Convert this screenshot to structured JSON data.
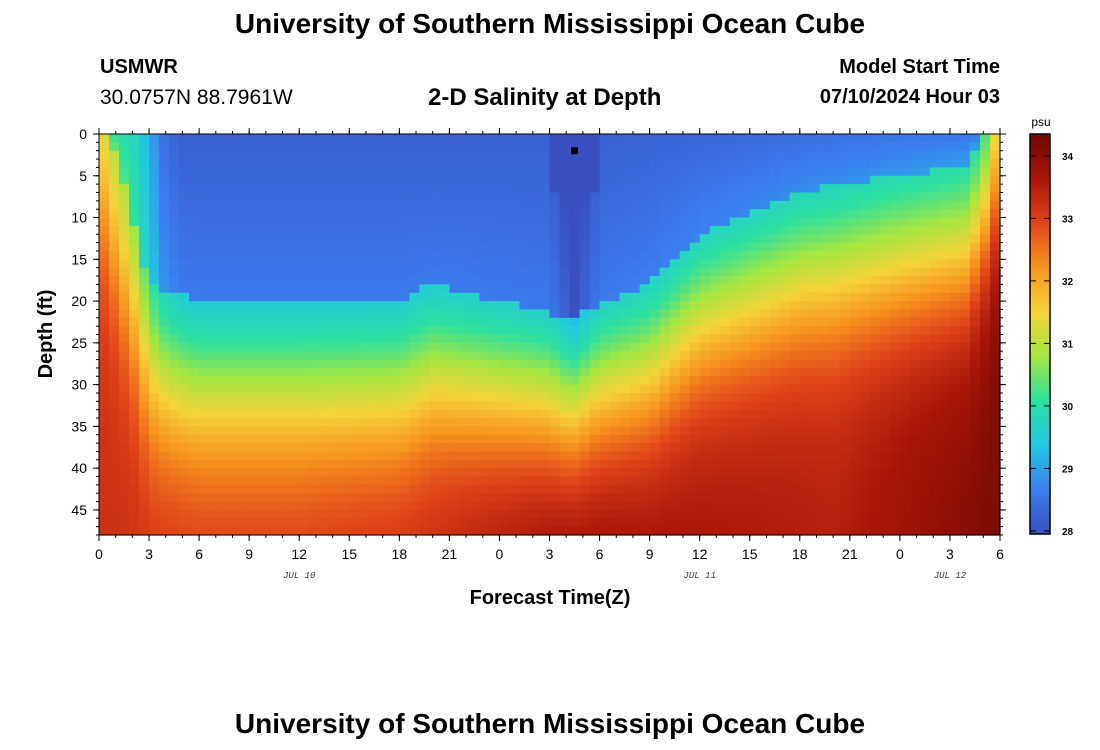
{
  "header": {
    "title": "University of Southern Mississippi Ocean Cube",
    "station": "USMWR",
    "coords": "30.0757N  88.7961W",
    "subtitle": "2-D Salinity at Depth",
    "model_start_label": "Model Start Time",
    "model_start_value": "07/10/2024 Hour 03"
  },
  "footer": {
    "title": "University of Southern Mississippi Ocean Cube"
  },
  "chart_data": {
    "type": "heatmap",
    "title": "2-D Salinity at Depth",
    "xlabel": "Forecast Time(Z)",
    "ylabel": "Depth (ft)",
    "x_ticks": [
      "0",
      "3",
      "6",
      "9",
      "12",
      "15",
      "18",
      "21",
      "0",
      "3",
      "6",
      "9",
      "12",
      "15",
      "18",
      "21",
      "0",
      "3",
      "6"
    ],
    "x_range_hours": [
      0,
      54
    ],
    "date_labels": [
      {
        "text": "JUL 10",
        "hour": 12
      },
      {
        "text": "JUL 11",
        "hour": 36
      },
      {
        "text": "JUL 12",
        "hour": 51
      }
    ],
    "y_ticks": [
      0,
      5,
      10,
      15,
      20,
      25,
      30,
      35,
      40,
      45
    ],
    "y_range": [
      0,
      48
    ],
    "colorbar": {
      "unit": "psu",
      "ticks": [
        28,
        29,
        30,
        31,
        32,
        33,
        34
      ],
      "range": [
        27.95,
        34.35
      ],
      "stops": [
        "#3a4fc0",
        "#3b7ef0",
        "#22c9e0",
        "#2de0a0",
        "#a6e640",
        "#f5d33a",
        "#f7941e",
        "#e0431a",
        "#a81408",
        "#6e0a04"
      ]
    },
    "marker": {
      "hour": 28.5,
      "depth": 2
    },
    "surface_columns": [
      {
        "hour": 0,
        "s": 30.3
      },
      {
        "hour": 2,
        "s": 29.8
      },
      {
        "hour": 4,
        "s": 28.4
      },
      {
        "hour": 5,
        "s": 28.2
      },
      {
        "hour": 27,
        "s": 28.2
      },
      {
        "hour": 28.5,
        "s": 27.6
      },
      {
        "hour": 30,
        "s": 28.2
      },
      {
        "hour": 53,
        "s": 28.6
      },
      {
        "hour": 54,
        "s": 30.3
      }
    ],
    "halocline_depth_ft": [
      {
        "hour": 0,
        "d": 5
      },
      {
        "hour": 3,
        "d": 28
      },
      {
        "hour": 6,
        "d": 30
      },
      {
        "hour": 12,
        "d": 30
      },
      {
        "hour": 18,
        "d": 30
      },
      {
        "hour": 20,
        "d": 28
      },
      {
        "hour": 24,
        "d": 30
      },
      {
        "hour": 28,
        "d": 32
      },
      {
        "hour": 33,
        "d": 28
      },
      {
        "hour": 36,
        "d": 22
      },
      {
        "hour": 42,
        "d": 17
      },
      {
        "hour": 48,
        "d": 15
      },
      {
        "hour": 52,
        "d": 14
      },
      {
        "hour": 54,
        "d": 5
      }
    ],
    "bottom_salinity": [
      {
        "hour": 0,
        "s": 33.2
      },
      {
        "hour": 12,
        "s": 33.2
      },
      {
        "hour": 20,
        "s": 33.4
      },
      {
        "hour": 28,
        "s": 34.1
      },
      {
        "hour": 36,
        "s": 33.7
      },
      {
        "hour": 44,
        "s": 33.5
      },
      {
        "hour": 54,
        "s": 34.2
      }
    ]
  }
}
